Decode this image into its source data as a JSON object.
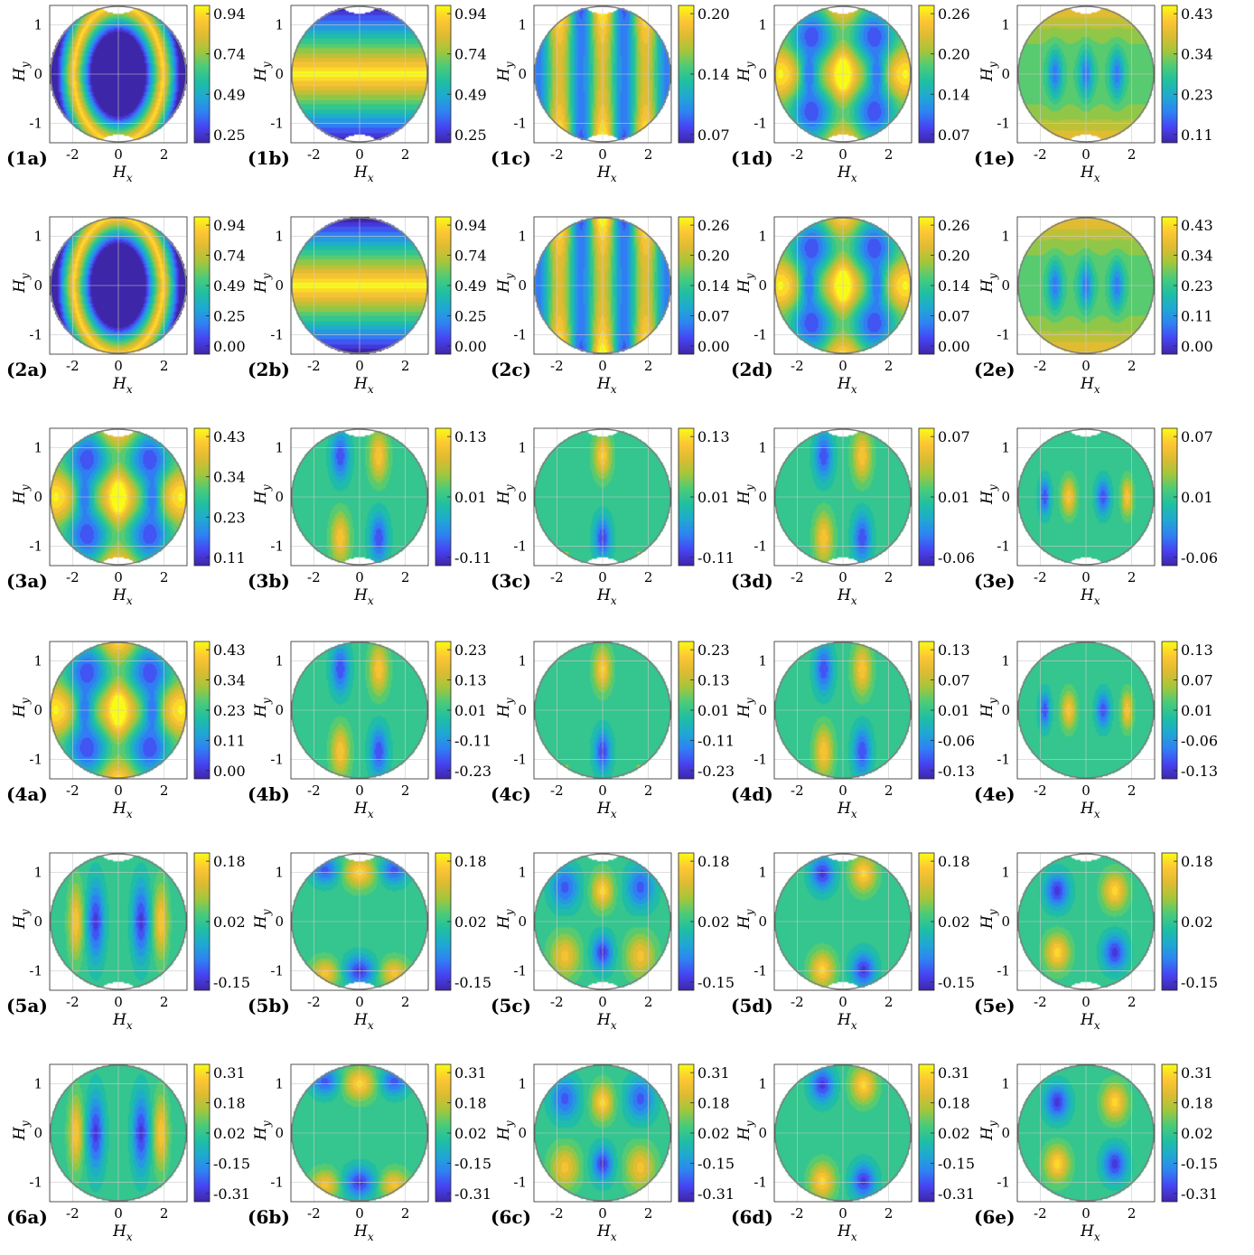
{
  "figure": {
    "x_axis_label_base": "H",
    "x_axis_label_sub": "x",
    "y_axis_label_base": "H",
    "y_axis_label_sub": "y",
    "x_ticks": [
      "-2",
      "0",
      "2"
    ],
    "y_ticks": [
      "1",
      "0",
      "-1"
    ],
    "colormap": [
      "#3e26a8",
      "#4743f2",
      "#2f81f3",
      "#1fa8d3",
      "#1fbfa2",
      "#4bcb79",
      "#a3c63c",
      "#ddbb32",
      "#fdc634",
      "#f9fb15"
    ],
    "outside_color": "#ffffff",
    "edge_color": "#808080"
  },
  "chart_data": [
    {
      "panel_label": "(1a)",
      "type": "heatmap",
      "pattern": "1a",
      "colorbar_ticks": [
        "0.94",
        "0.74",
        "0.49",
        "0.25"
      ],
      "xlim": [
        -3,
        3
      ],
      "ylim": [
        -1.4,
        1.4
      ],
      "grid": true
    },
    {
      "panel_label": "(1b)",
      "type": "heatmap",
      "pattern": "1b",
      "colorbar_ticks": [
        "0.94",
        "0.74",
        "0.49",
        "0.25"
      ],
      "xlim": [
        -3,
        3
      ],
      "ylim": [
        -1.4,
        1.4
      ],
      "grid": true
    },
    {
      "panel_label": "(1c)",
      "type": "heatmap",
      "pattern": "1c",
      "colorbar_ticks": [
        "0.20",
        "0.14",
        "0.07"
      ],
      "xlim": [
        -3,
        3
      ],
      "ylim": [
        -1.4,
        1.4
      ],
      "grid": true
    },
    {
      "panel_label": "(1d)",
      "type": "heatmap",
      "pattern": "1d",
      "colorbar_ticks": [
        "0.26",
        "0.20",
        "0.14",
        "0.07"
      ],
      "xlim": [
        -3,
        3
      ],
      "ylim": [
        -1.4,
        1.4
      ],
      "grid": true
    },
    {
      "panel_label": "(1e)",
      "type": "heatmap",
      "pattern": "1e",
      "colorbar_ticks": [
        "0.43",
        "0.34",
        "0.23",
        "0.11"
      ],
      "xlim": [
        -3,
        3
      ],
      "ylim": [
        -1.4,
        1.4
      ],
      "grid": true
    },
    {
      "panel_label": "(2a)",
      "type": "heatmap",
      "pattern": "2a",
      "colorbar_ticks": [
        "0.94",
        "0.74",
        "0.49",
        "0.25",
        "0.00"
      ],
      "xlim": [
        -3,
        3
      ],
      "ylim": [
        -1.4,
        1.4
      ],
      "grid": true
    },
    {
      "panel_label": "(2b)",
      "type": "heatmap",
      "pattern": "2b",
      "colorbar_ticks": [
        "0.94",
        "0.74",
        "0.49",
        "0.25",
        "0.00"
      ],
      "xlim": [
        -3,
        3
      ],
      "ylim": [
        -1.4,
        1.4
      ],
      "grid": true
    },
    {
      "panel_label": "(2c)",
      "type": "heatmap",
      "pattern": "2c",
      "colorbar_ticks": [
        "0.26",
        "0.20",
        "0.14",
        "0.07",
        "0.00"
      ],
      "xlim": [
        -3,
        3
      ],
      "ylim": [
        -1.4,
        1.4
      ],
      "grid": true
    },
    {
      "panel_label": "(2d)",
      "type": "heatmap",
      "pattern": "2d",
      "colorbar_ticks": [
        "0.26",
        "0.20",
        "0.14",
        "0.07",
        "0.00"
      ],
      "xlim": [
        -3,
        3
      ],
      "ylim": [
        -1.4,
        1.4
      ],
      "grid": true
    },
    {
      "panel_label": "(2e)",
      "type": "heatmap",
      "pattern": "2e",
      "colorbar_ticks": [
        "0.43",
        "0.34",
        "0.23",
        "0.11",
        "0.00"
      ],
      "xlim": [
        -3,
        3
      ],
      "ylim": [
        -1.4,
        1.4
      ],
      "grid": true
    },
    {
      "panel_label": "(3a)",
      "type": "heatmap",
      "pattern": "3a",
      "colorbar_ticks": [
        "0.43",
        "0.34",
        "0.23",
        "0.11"
      ],
      "xlim": [
        -3,
        3
      ],
      "ylim": [
        -1.4,
        1.4
      ],
      "grid": true
    },
    {
      "panel_label": "(3b)",
      "type": "heatmap",
      "pattern": "3b",
      "colorbar_ticks": [
        "0.13",
        "0.01",
        "-0.11"
      ],
      "xlim": [
        -3,
        3
      ],
      "ylim": [
        -1.4,
        1.4
      ],
      "grid": true
    },
    {
      "panel_label": "(3c)",
      "type": "heatmap",
      "pattern": "3c",
      "colorbar_ticks": [
        "0.13",
        "0.01",
        "-0.11"
      ],
      "xlim": [
        -3,
        3
      ],
      "ylim": [
        -1.4,
        1.4
      ],
      "grid": true
    },
    {
      "panel_label": "(3d)",
      "type": "heatmap",
      "pattern": "3d",
      "colorbar_ticks": [
        "0.07",
        "0.01",
        "-0.06"
      ],
      "xlim": [
        -3,
        3
      ],
      "ylim": [
        -1.4,
        1.4
      ],
      "grid": true
    },
    {
      "panel_label": "(3e)",
      "type": "heatmap",
      "pattern": "3e",
      "colorbar_ticks": [
        "0.07",
        "0.01",
        "-0.06"
      ],
      "xlim": [
        -3,
        3
      ],
      "ylim": [
        -1.4,
        1.4
      ],
      "grid": true
    },
    {
      "panel_label": "(4a)",
      "type": "heatmap",
      "pattern": "4a",
      "colorbar_ticks": [
        "0.43",
        "0.34",
        "0.23",
        "0.11",
        "0.00"
      ],
      "xlim": [
        -3,
        3
      ],
      "ylim": [
        -1.4,
        1.4
      ],
      "grid": true
    },
    {
      "panel_label": "(4b)",
      "type": "heatmap",
      "pattern": "4b",
      "colorbar_ticks": [
        "0.23",
        "0.13",
        "0.01",
        "-0.11",
        "-0.23"
      ],
      "xlim": [
        -3,
        3
      ],
      "ylim": [
        -1.4,
        1.4
      ],
      "grid": true
    },
    {
      "panel_label": "(4c)",
      "type": "heatmap",
      "pattern": "4c",
      "colorbar_ticks": [
        "0.23",
        "0.13",
        "0.01",
        "-0.11",
        "-0.23"
      ],
      "xlim": [
        -3,
        3
      ],
      "ylim": [
        -1.4,
        1.4
      ],
      "grid": true
    },
    {
      "panel_label": "(4d)",
      "type": "heatmap",
      "pattern": "4d",
      "colorbar_ticks": [
        "0.13",
        "0.07",
        "0.01",
        "-0.06",
        "-0.13"
      ],
      "xlim": [
        -3,
        3
      ],
      "ylim": [
        -1.4,
        1.4
      ],
      "grid": true
    },
    {
      "panel_label": "(4e)",
      "type": "heatmap",
      "pattern": "4e",
      "colorbar_ticks": [
        "0.13",
        "0.07",
        "0.01",
        "-0.06",
        "-0.13"
      ],
      "xlim": [
        -3,
        3
      ],
      "ylim": [
        -1.4,
        1.4
      ],
      "grid": true
    },
    {
      "panel_label": "(5a)",
      "type": "heatmap",
      "pattern": "5a",
      "colorbar_ticks": [
        "0.18",
        "0.02",
        "-0.15"
      ],
      "xlim": [
        -3,
        3
      ],
      "ylim": [
        -1.4,
        1.4
      ],
      "grid": true
    },
    {
      "panel_label": "(5b)",
      "type": "heatmap",
      "pattern": "5b",
      "colorbar_ticks": [
        "0.18",
        "0.02",
        "-0.15"
      ],
      "xlim": [
        -3,
        3
      ],
      "ylim": [
        -1.4,
        1.4
      ],
      "grid": true
    },
    {
      "panel_label": "(5c)",
      "type": "heatmap",
      "pattern": "5c",
      "colorbar_ticks": [
        "0.18",
        "0.02",
        "-0.15"
      ],
      "xlim": [
        -3,
        3
      ],
      "ylim": [
        -1.4,
        1.4
      ],
      "grid": true
    },
    {
      "panel_label": "(5d)",
      "type": "heatmap",
      "pattern": "5d",
      "colorbar_ticks": [
        "0.18",
        "0.02",
        "-0.15"
      ],
      "xlim": [
        -3,
        3
      ],
      "ylim": [
        -1.4,
        1.4
      ],
      "grid": true
    },
    {
      "panel_label": "(5e)",
      "type": "heatmap",
      "pattern": "5e",
      "colorbar_ticks": [
        "0.18",
        "0.02",
        "-0.15"
      ],
      "xlim": [
        -3,
        3
      ],
      "ylim": [
        -1.4,
        1.4
      ],
      "grid": true
    },
    {
      "panel_label": "(6a)",
      "type": "heatmap",
      "pattern": "6a",
      "colorbar_ticks": [
        "0.31",
        "0.18",
        "0.02",
        "-0.15",
        "-0.31"
      ],
      "xlim": [
        -3,
        3
      ],
      "ylim": [
        -1.4,
        1.4
      ],
      "grid": true
    },
    {
      "panel_label": "(6b)",
      "type": "heatmap",
      "pattern": "6b",
      "colorbar_ticks": [
        "0.31",
        "0.18",
        "0.02",
        "-0.15",
        "-0.31"
      ],
      "xlim": [
        -3,
        3
      ],
      "ylim": [
        -1.4,
        1.4
      ],
      "grid": true
    },
    {
      "panel_label": "(6c)",
      "type": "heatmap",
      "pattern": "6c",
      "colorbar_ticks": [
        "0.31",
        "0.18",
        "0.02",
        "-0.15",
        "-0.31"
      ],
      "xlim": [
        -3,
        3
      ],
      "ylim": [
        -1.4,
        1.4
      ],
      "grid": true
    },
    {
      "panel_label": "(6d)",
      "type": "heatmap",
      "pattern": "6d",
      "colorbar_ticks": [
        "0.31",
        "0.18",
        "0.02",
        "-0.15",
        "-0.31"
      ],
      "xlim": [
        -3,
        3
      ],
      "ylim": [
        -1.4,
        1.4
      ],
      "grid": true
    },
    {
      "panel_label": "(6e)",
      "type": "heatmap",
      "pattern": "6e",
      "colorbar_ticks": [
        "0.31",
        "0.18",
        "0.02",
        "-0.15",
        "-0.31"
      ],
      "xlim": [
        -3,
        3
      ],
      "ylim": [
        -1.4,
        1.4
      ],
      "grid": true
    }
  ]
}
